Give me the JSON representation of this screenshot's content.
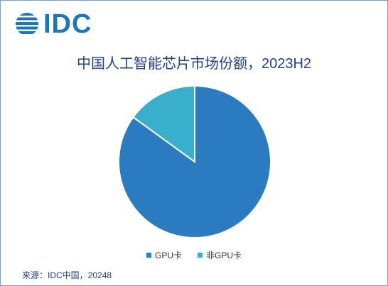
{
  "brand": {
    "logo_text": "IDC",
    "color": "#1a76bd"
  },
  "chart_data": {
    "type": "pie",
    "title": "中国人工智能芯片市场份额，2023H2",
    "categories": [
      "GPU卡",
      "非GPU卡"
    ],
    "values": [
      85,
      15
    ],
    "colors": [
      "#2a7bbf",
      "#3aafcc"
    ],
    "legend_position": "bottom"
  },
  "source": "来源：IDC中国，20248"
}
